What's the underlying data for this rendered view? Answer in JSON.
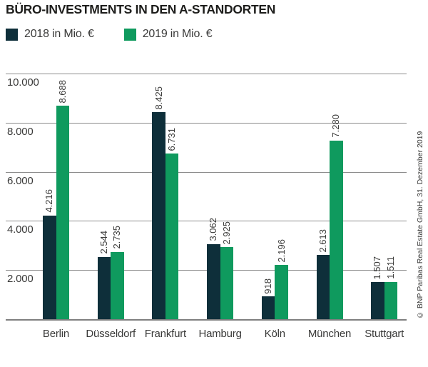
{
  "title": "BÜRO-INVESTMENTS IN DEN A-STANDORTEN",
  "legend": [
    {
      "label": "2018 in Mio. €",
      "color": "#0e2f3a"
    },
    {
      "label": "2019 in Mio. €",
      "color": "#0f9a5e"
    }
  ],
  "source_note": "© BNP Paribas Real Estate GmbH, 31. Dezember 2019",
  "colors": {
    "series_2018": "#0e2f3a",
    "series_2019": "#0f9a5e",
    "gridline": "#8c8c8c",
    "baseline": "#7f7f7f",
    "text": "#3a3a39",
    "title_text": "#1d1d1b"
  },
  "chart_data": {
    "type": "bar",
    "title": "BÜRO-INVESTMENTS IN DEN A-STANDORTEN",
    "categories": [
      "Berlin",
      "Düsseldorf",
      "Frankfurt",
      "Hamburg",
      "Köln",
      "München",
      "Stuttgart"
    ],
    "series": [
      {
        "name": "2018 in Mio. €",
        "color": "#0e2f3a",
        "values": [
          4216,
          2544,
          8425,
          3062,
          918,
          2613,
          1507
        ]
      },
      {
        "name": "2019 in Mio. €",
        "color": "#0f9a5e",
        "values": [
          8688,
          2735,
          6731,
          2925,
          2196,
          7280,
          1511
        ]
      }
    ],
    "value_labels": [
      [
        "4.216",
        "2.544",
        "8.425",
        "3.062",
        "918",
        "2.613",
        "1.507"
      ],
      [
        "8.688",
        "2.735",
        "6.731",
        "2.925",
        "2.196",
        "7.280",
        "1.511"
      ]
    ],
    "xlabel": "",
    "ylabel": "",
    "y_ticks": [
      2000,
      4000,
      6000,
      8000,
      10000
    ],
    "y_tick_labels": [
      "2.000",
      "4.000",
      "6.000",
      "8.000",
      "10.000"
    ],
    "ylim": [
      0,
      10000
    ],
    "grid": true,
    "legend_position": "top-left",
    "bar_value_label_rotation": 90
  }
}
